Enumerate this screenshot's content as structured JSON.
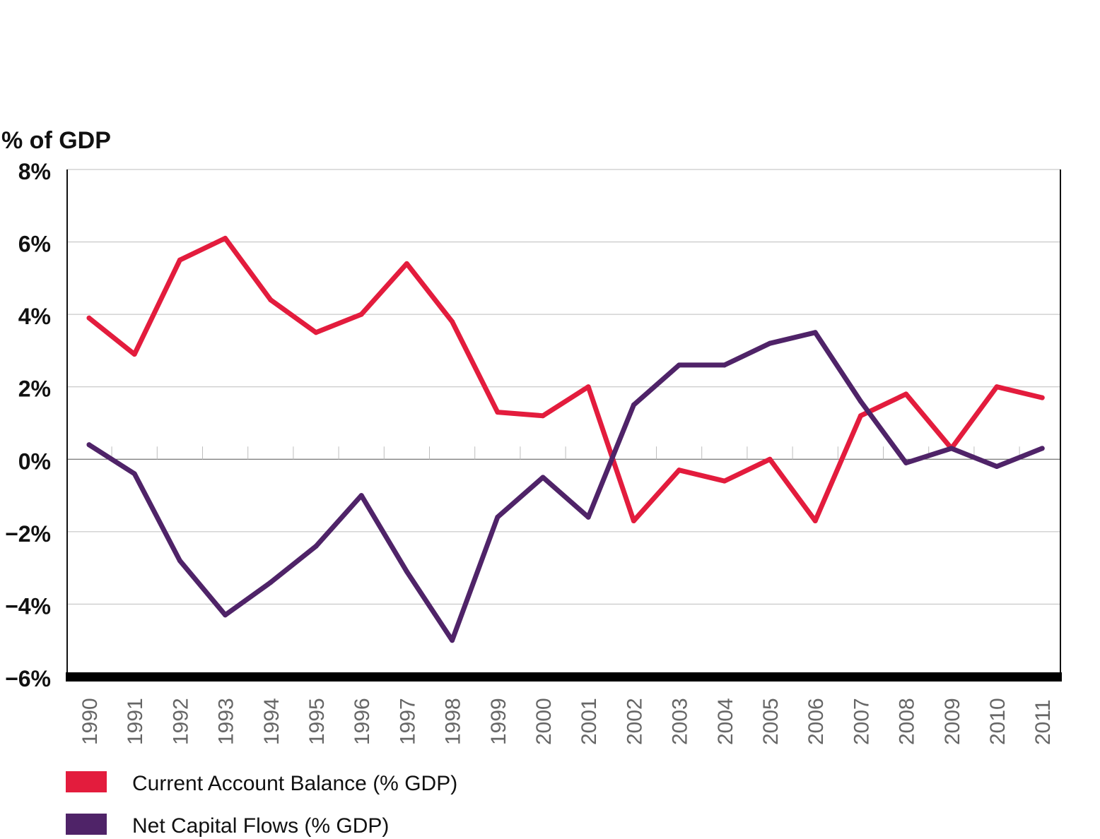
{
  "chart_data": {
    "type": "line",
    "unit_label": "% of GDP",
    "xlabel": "",
    "ylabel": "",
    "ylim": [
      -6,
      8
    ],
    "y_ticks": [
      {
        "value": 8,
        "label": "8%"
      },
      {
        "value": 6,
        "label": "6%"
      },
      {
        "value": 4,
        "label": "4%"
      },
      {
        "value": 2,
        "label": "2%"
      },
      {
        "value": 0,
        "label": "0%"
      },
      {
        "value": -2,
        "label": "−2%"
      },
      {
        "value": -4,
        "label": "−4%"
      },
      {
        "value": -6,
        "label": "−6%"
      }
    ],
    "grid": true,
    "legend_position": "bottom-left",
    "categories": [
      "1990",
      "1991",
      "1992",
      "1993",
      "1994",
      "1995",
      "1996",
      "1997",
      "1998",
      "1999",
      "2000",
      "2001",
      "2002",
      "2003",
      "2004",
      "2005",
      "2006",
      "2007",
      "2008",
      "2009",
      "2010",
      "2011"
    ],
    "series": [
      {
        "name": "Current Account Balance (% GDP)",
        "color": "#e31c3d",
        "values": [
          3.9,
          2.9,
          5.5,
          6.1,
          4.4,
          3.5,
          4.0,
          5.4,
          3.8,
          1.3,
          1.2,
          2.0,
          -1.7,
          -0.3,
          -0.6,
          0.0,
          -1.7,
          1.2,
          1.8,
          0.3,
          2.0,
          1.7
        ]
      },
      {
        "name": "Net Capital Flows (% GDP)",
        "color": "#4f2368",
        "values": [
          0.4,
          -0.4,
          -2.8,
          -4.3,
          -3.4,
          -2.4,
          -1.0,
          -3.1,
          -5.0,
          -1.6,
          -0.5,
          -1.6,
          1.5,
          2.6,
          2.6,
          3.2,
          3.5,
          1.6,
          -0.1,
          0.3,
          -0.2,
          0.3
        ]
      }
    ]
  }
}
